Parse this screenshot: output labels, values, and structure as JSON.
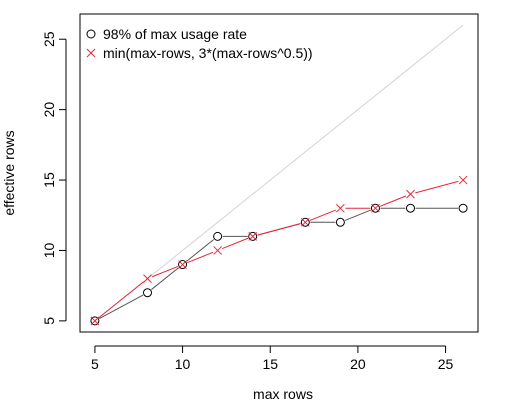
{
  "chart_data": {
    "type": "line",
    "title": "",
    "xlabel": "max rows",
    "ylabel": "effective rows",
    "xlim": [
      4.15,
      26.85
    ],
    "ylim": [
      4.21,
      26.79
    ],
    "x_ticks": [
      5,
      10,
      15,
      20,
      25
    ],
    "y_ticks": [
      5,
      10,
      15,
      20,
      25
    ],
    "grid": false,
    "legend_position": "top-left",
    "reference_line": {
      "from": [
        5,
        5
      ],
      "to": [
        26,
        26
      ],
      "color": "#d3d3d3"
    },
    "series": [
      {
        "name": "98% of max usage rate",
        "marker": "circle",
        "color": "#000000",
        "line_color": "#555555",
        "x": [
          5,
          8,
          10,
          12,
          14,
          17,
          19,
          21,
          23,
          26
        ],
        "y": [
          5,
          7,
          9,
          11,
          11,
          12,
          12,
          13,
          13,
          13
        ]
      },
      {
        "name": "min(max-rows, 3*(max-rows^0.5))",
        "marker": "cross",
        "color": "#e8253a",
        "line_color": "#e8253a",
        "x": [
          5,
          8,
          10,
          12,
          14,
          17,
          19,
          21,
          23,
          26
        ],
        "y": [
          5,
          8,
          9,
          10,
          11,
          12,
          13,
          13,
          14,
          15
        ]
      }
    ]
  }
}
